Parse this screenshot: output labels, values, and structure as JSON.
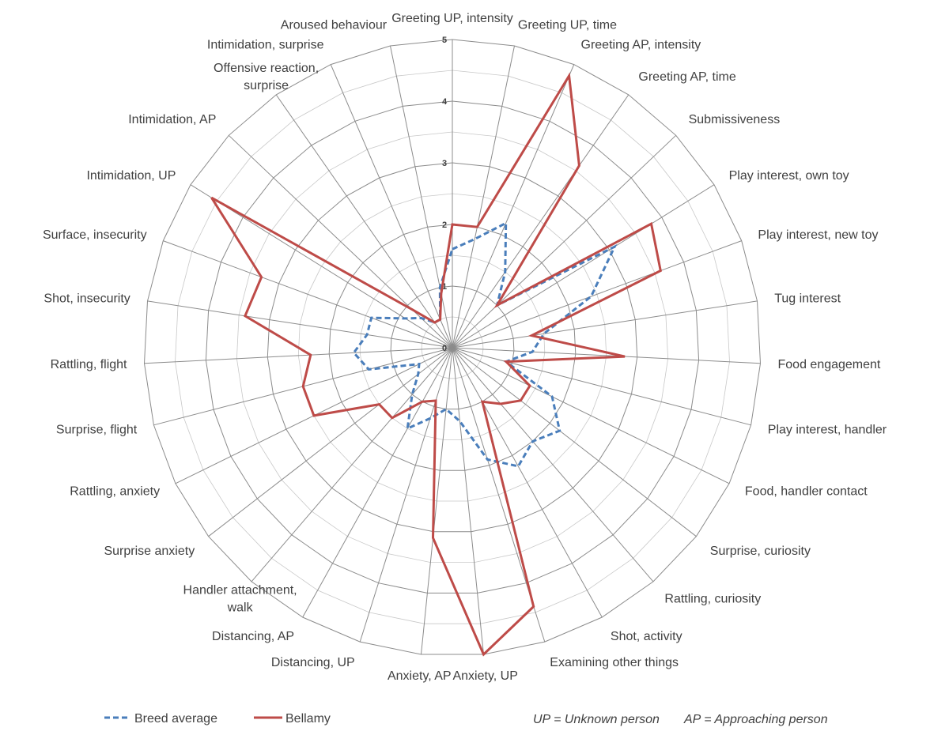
{
  "chart_data": {
    "type": "radar",
    "axes": [
      "Greeting UP, intensity",
      "Greeting UP, time",
      "Greeting AP, intensity",
      "Greeting AP, time",
      "Submissiveness",
      "Play interest, own toy",
      "Play interest, new toy",
      "Tug interest",
      "Food engagement",
      "Play interest, handler",
      "Food, handler contact",
      "Surprise, curiosity",
      "Rattling, curiosity",
      "Shot, activity",
      "Examining other things",
      "Anxiety, UP",
      "Anxiety, AP",
      "Distancing, UP",
      "Distancing, AP",
      "Handler attachment, walk",
      "Surprise anxiety",
      "Rattling, anxiety",
      "Surprise, flight",
      "Rattling, flight",
      "Shot, insecurity",
      "Surface, insecurity",
      "Intimidation, UP",
      "Intimidation, AP",
      "Offensive reaction, surprise",
      "Intimidation, surprise",
      "Aroused behaviour"
    ],
    "r_ticks": [
      "0",
      "1",
      "2",
      "3",
      "4",
      "5"
    ],
    "r_range": [
      0,
      5
    ],
    "grid": true,
    "legend_position": "bottom-left",
    "series": [
      {
        "name": "Breed average",
        "color": "#4a7ebb",
        "dash": "dashed",
        "values": [
          1.6,
          1.8,
          2.2,
          1.5,
          1.0,
          3.1,
          2.4,
          1.5,
          1.3,
          0.9,
          1.8,
          2.2,
          2.0,
          2.2,
          1.9,
          1.2,
          1.0,
          1.2,
          1.5,
          1.0,
          0.7,
          0.6,
          1.4,
          1.6,
          1.4,
          1.4,
          0.9,
          0.7,
          0.5,
          0.5,
          1.0
        ]
      },
      {
        "name": "Bellamy",
        "color": "#be4b48",
        "dash": "solid",
        "values": [
          2.0,
          2.0,
          4.8,
          3.6,
          1.0,
          3.8,
          3.6,
          1.3,
          2.8,
          0.9,
          1.4,
          1.4,
          1.2,
          1.0,
          4.4,
          5.0,
          3.1,
          0.9,
          1.0,
          1.5,
          1.5,
          2.5,
          2.5,
          2.3,
          3.4,
          3.3,
          4.6,
          0.9,
          0.5,
          0.5,
          0.9
        ]
      }
    ]
  },
  "legend": {
    "breed_average": "Breed average",
    "bellamy": "Bellamy"
  },
  "notes": {
    "up": "UP = Unknown person",
    "ap": "AP = Approaching person"
  }
}
